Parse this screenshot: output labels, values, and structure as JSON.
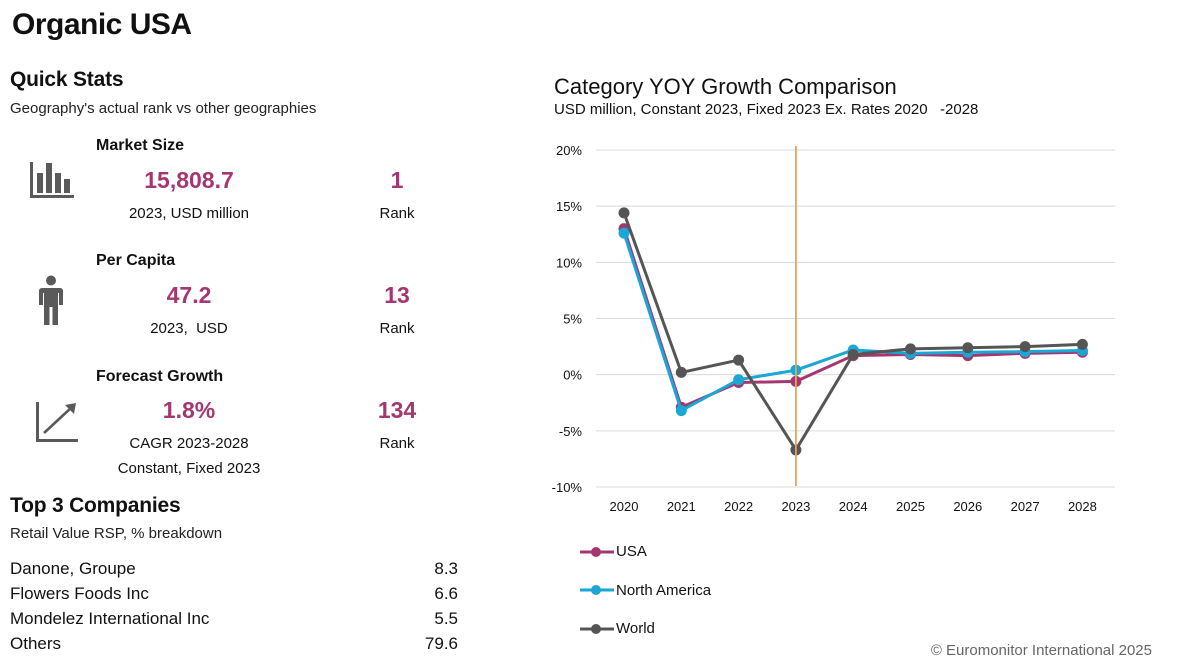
{
  "page": {
    "title": "Organic USA"
  },
  "quick_stats": {
    "title": "Quick Stats",
    "subtitle": "Geography's actual rank vs other geographies",
    "items": [
      {
        "label": "Market Size",
        "icon": "bar-chart-icon",
        "value": "15,808.7",
        "value_sub": "2023, USD million",
        "rank": "1",
        "rank_label": "Rank"
      },
      {
        "label": "Per Capita",
        "icon": "person-icon",
        "value": "47.2",
        "value_sub": "2023,  USD",
        "rank": "13",
        "rank_label": "Rank"
      },
      {
        "label": "Forecast Growth",
        "icon": "trend-up-icon",
        "value": "1.8%",
        "value_sub": "CAGR 2023-2028",
        "value_sub2": "Constant, Fixed 2023",
        "rank": "134",
        "rank_label": "Rank"
      }
    ]
  },
  "top_companies": {
    "title": "Top 3 Companies",
    "subtitle": "Retail Value RSP, % breakdown",
    "rows": [
      {
        "name": "Danone, Groupe",
        "value": "8.3"
      },
      {
        "name": "Flowers Foods Inc",
        "value": "6.6"
      },
      {
        "name": "Mondelez International Inc",
        "value": "5.5"
      },
      {
        "name": "Others",
        "value": "79.6"
      }
    ]
  },
  "colors": {
    "accent": "#a4376f",
    "usa": "#a4376f",
    "north_america": "#1aa7d4",
    "world": "#555555",
    "marker_line": "#e8a160",
    "grid": "#d9d9d9"
  },
  "chart_data": {
    "type": "line",
    "title": "Category YOY Growth Comparison",
    "subtitle": "USD million, Constant 2023, Fixed 2023 Ex. Rates 2020   -2028",
    "xlabel": "",
    "ylabel": "",
    "x": [
      "2020",
      "2021",
      "2022",
      "2023",
      "2024",
      "2025",
      "2026",
      "2027",
      "2028"
    ],
    "ylim": [
      -10,
      20
    ],
    "yticks": [
      20,
      15,
      10,
      5,
      0,
      -5,
      -10
    ],
    "ytick_labels": [
      "20%",
      "15%",
      "10%",
      "5%",
      "0%",
      "-5%",
      "-10%"
    ],
    "grid": true,
    "reference_line_x": "2023",
    "legend_position": "bottom-left",
    "series": [
      {
        "name": "USA",
        "color": "#a4376f",
        "values": [
          13.0,
          -2.9,
          -0.7,
          -0.6,
          1.7,
          1.8,
          1.7,
          1.9,
          2.0
        ]
      },
      {
        "name": "North America",
        "color": "#1aa7d4",
        "values": [
          12.6,
          -3.2,
          -0.45,
          0.4,
          2.2,
          1.9,
          2.0,
          2.05,
          2.15
        ]
      },
      {
        "name": "World",
        "color": "#555555",
        "values": [
          14.4,
          0.2,
          1.3,
          -6.7,
          1.8,
          2.3,
          2.4,
          2.5,
          2.7
        ]
      }
    ]
  },
  "footer": {
    "copyright": "© Euromonitor International 2025"
  }
}
